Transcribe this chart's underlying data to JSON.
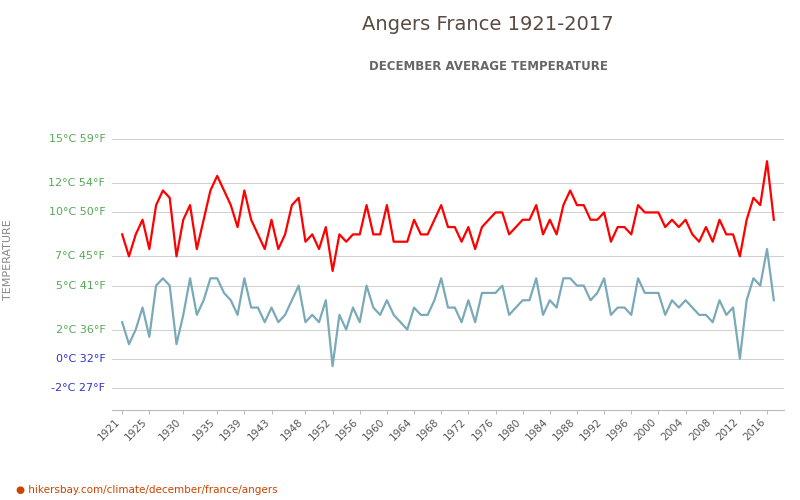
{
  "title": "Angers France 1921-2017",
  "subtitle": "DECEMBER AVERAGE TEMPERATURE",
  "ylabel": "TEMPERATURE",
  "xlabel_url": "hikersbay.com/climate/december/france/angers",
  "y_ticks_celsius": [
    -2,
    0,
    2,
    5,
    7,
    10,
    12,
    15
  ],
  "y_ticks_fahrenheit": [
    27,
    32,
    36,
    41,
    45,
    50,
    54,
    59
  ],
  "ylim": [
    -3.5,
    17.0
  ],
  "years": [
    1921,
    1922,
    1923,
    1924,
    1925,
    1926,
    1927,
    1928,
    1929,
    1930,
    1931,
    1932,
    1933,
    1934,
    1935,
    1936,
    1937,
    1938,
    1939,
    1940,
    1941,
    1942,
    1943,
    1944,
    1945,
    1946,
    1947,
    1948,
    1949,
    1950,
    1951,
    1952,
    1953,
    1954,
    1955,
    1956,
    1957,
    1958,
    1959,
    1960,
    1961,
    1962,
    1963,
    1964,
    1965,
    1966,
    1967,
    1968,
    1969,
    1970,
    1971,
    1972,
    1973,
    1974,
    1975,
    1976,
    1977,
    1978,
    1979,
    1980,
    1981,
    1982,
    1983,
    1984,
    1985,
    1986,
    1987,
    1988,
    1989,
    1990,
    1991,
    1992,
    1993,
    1994,
    1995,
    1996,
    1997,
    1998,
    1999,
    2000,
    2001,
    2002,
    2003,
    2004,
    2005,
    2006,
    2007,
    2008,
    2009,
    2010,
    2011,
    2012,
    2013,
    2014,
    2015,
    2016,
    2017
  ],
  "day": [
    8.5,
    7.0,
    8.5,
    9.5,
    7.5,
    10.5,
    11.5,
    11.0,
    7.0,
    9.5,
    10.5,
    7.5,
    9.5,
    11.5,
    12.5,
    11.5,
    10.5,
    9.0,
    11.5,
    9.5,
    8.5,
    7.5,
    9.5,
    7.5,
    8.5,
    10.5,
    11.0,
    8.0,
    8.5,
    7.5,
    9.0,
    6.0,
    8.5,
    8.0,
    8.5,
    8.5,
    10.5,
    8.5,
    8.5,
    10.5,
    8.0,
    8.0,
    8.0,
    9.5,
    8.5,
    8.5,
    9.5,
    10.5,
    9.0,
    9.0,
    8.0,
    9.0,
    7.5,
    9.0,
    9.5,
    10.0,
    10.0,
    8.5,
    9.0,
    9.5,
    9.5,
    10.5,
    8.5,
    9.5,
    8.5,
    10.5,
    11.5,
    10.5,
    10.5,
    9.5,
    9.5,
    10.0,
    8.0,
    9.0,
    9.0,
    8.5,
    10.5,
    10.0,
    10.0,
    10.0,
    9.0,
    9.5,
    9.0,
    9.5,
    8.5,
    8.0,
    9.0,
    8.0,
    9.5,
    8.5,
    8.5,
    7.0,
    9.5,
    11.0,
    10.5,
    13.5,
    9.5
  ],
  "night": [
    2.5,
    1.0,
    2.0,
    3.5,
    1.5,
    5.0,
    5.5,
    5.0,
    1.0,
    3.0,
    5.5,
    3.0,
    4.0,
    5.5,
    5.5,
    4.5,
    4.0,
    3.0,
    5.5,
    3.5,
    3.5,
    2.5,
    3.5,
    2.5,
    3.0,
    4.0,
    5.0,
    2.5,
    3.0,
    2.5,
    4.0,
    -0.5,
    3.0,
    2.0,
    3.5,
    2.5,
    5.0,
    3.5,
    3.0,
    4.0,
    3.0,
    2.5,
    2.0,
    3.5,
    3.0,
    3.0,
    4.0,
    5.5,
    3.5,
    3.5,
    2.5,
    4.0,
    2.5,
    4.5,
    4.5,
    4.5,
    5.0,
    3.0,
    3.5,
    4.0,
    4.0,
    5.5,
    3.0,
    4.0,
    3.5,
    5.5,
    5.5,
    5.0,
    5.0,
    4.0,
    4.5,
    5.5,
    3.0,
    3.5,
    3.5,
    3.0,
    5.5,
    4.5,
    4.5,
    4.5,
    3.0,
    4.0,
    3.5,
    4.0,
    3.5,
    3.0,
    3.0,
    2.5,
    4.0,
    3.0,
    3.5,
    0.0,
    4.0,
    5.5,
    5.0,
    7.5,
    4.0
  ],
  "line_color_day": "#ff0000",
  "line_color_night": "#7aaab8",
  "line_width": 1.6,
  "bg_color": "#ffffff",
  "grid_color": "#d0d0d0",
  "title_color": "#5a4a42",
  "subtitle_color": "#666666",
  "color_green": "#55aa55",
  "color_blue": "#3333cc",
  "ylabel_color": "#888888",
  "url_color": "#cc4400",
  "x_tick_years": [
    1921,
    1925,
    1930,
    1935,
    1939,
    1943,
    1948,
    1952,
    1956,
    1960,
    1964,
    1968,
    1972,
    1976,
    1980,
    1984,
    1988,
    1992,
    1996,
    2000,
    2004,
    2008,
    2012,
    2016
  ]
}
